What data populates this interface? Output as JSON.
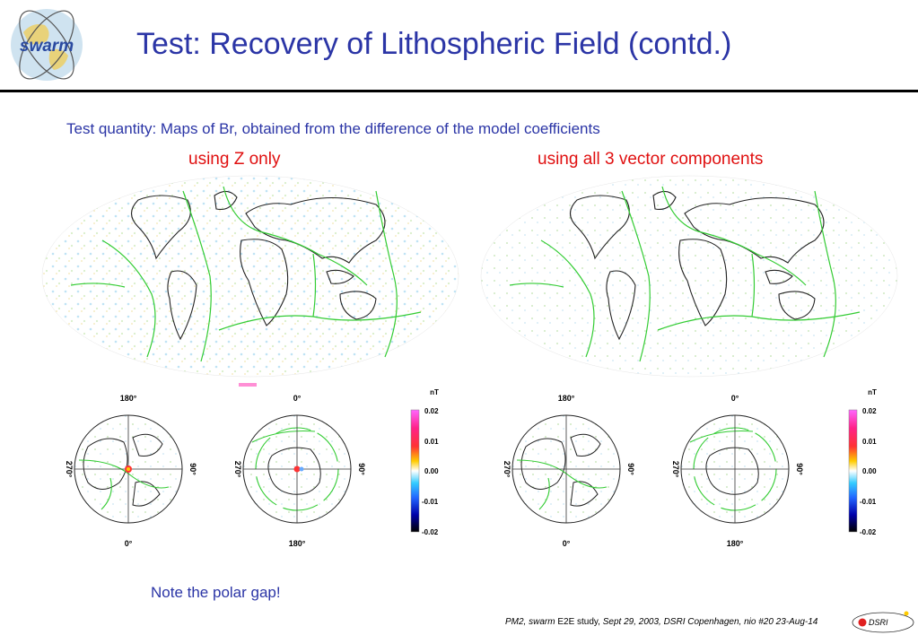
{
  "slide": {
    "title": "Test: Recovery of Lithospheric Field (contd.)",
    "logo_text": "swarm",
    "subtitle": "Test quantity: Maps of Br, obtained from the difference of the model coefficients",
    "panel_left_label": "using Z only",
    "panel_right_label": "using all 3 vector components",
    "note": "Note the polar gap!",
    "footer": {
      "prefix": "PM2, swarm",
      "middle": " E2E study, ",
      "rest": "Sept 29, 2003, DSRI Copenhagen, nio #20 23-Aug-14"
    },
    "dsri_logo_text": "DSRI"
  },
  "polar_labels": {
    "north_top": "180°",
    "north_bottom": "0°",
    "south_top": "0°",
    "south_bottom": "180°",
    "left": "270°",
    "right": "90°"
  },
  "colorbar": {
    "unit": "nT",
    "ticks": [
      "0.02",
      "0.01",
      "0.00",
      "-0.01",
      "-0.02"
    ]
  },
  "colors": {
    "title": "#2b35a6",
    "accent_red": "#e01010",
    "coastline": "#222222",
    "plate_boundaries": "#33cc33"
  }
}
